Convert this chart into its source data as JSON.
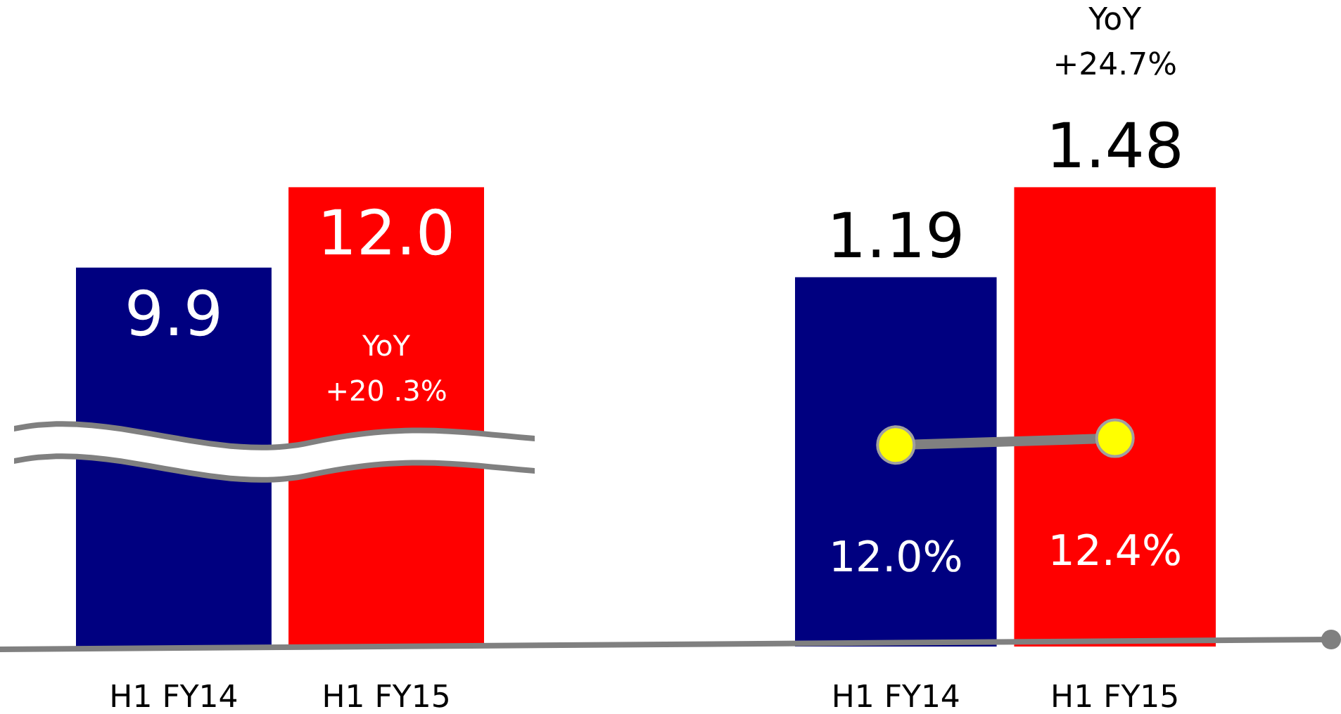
{
  "chart_data": [
    {
      "type": "bar",
      "categories": [
        "H1 FY14",
        "H1 FY15"
      ],
      "tick_labels": "x",
      "data_labels": true,
      "series": [
        {
          "values": [
            9.9,
            12.0
          ],
          "colors": [
            "#000080",
            "#ff0000"
          ],
          "value_labels": [
            "9.9",
            "12.0"
          ]
        }
      ],
      "annotations": [
        "YoY\n+20 .3%"
      ]
    },
    {
      "type": "bar",
      "categories": [
        "H1 FY14",
        "H1 FY15"
      ],
      "tick_labels": "x",
      "data_labels": true,
      "series": [
        {
          "values": [
            1.19,
            1.48
          ],
          "colors": [
            "#000080",
            "#ff0000"
          ],
          "value_labels": [
            "1.19",
            "1.48"
          ]
        },
        {
          "type": "line",
          "axis": "y2",
          "color": "#808080",
          "colors": [
            "#ffff00",
            "#ffff00"
          ],
          "marker": "circle",
          "values": [
            12.0,
            12.4
          ],
          "value_labels": [
            "12.0%",
            "12.4%"
          ]
        }
      ],
      "annotations": [
        "YoY\n+24.7%"
      ]
    }
  ]
}
